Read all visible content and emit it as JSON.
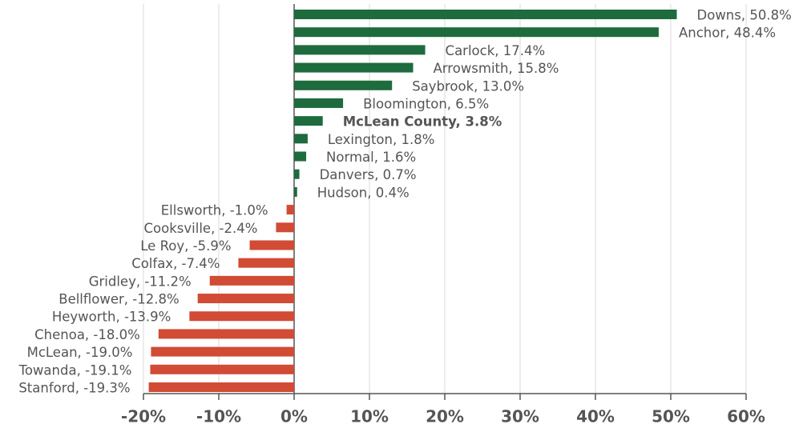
{
  "chart_data": {
    "type": "barh",
    "values": [
      50.8,
      48.4,
      17.4,
      15.8,
      13.0,
      6.5,
      3.8,
      1.8,
      1.6,
      0.7,
      0.4,
      -1.0,
      -2.4,
      -5.9,
      -7.4,
      -11.2,
      -12.8,
      -13.9,
      -18.0,
      -19.0,
      -19.1,
      -19.3
    ],
    "value_labels": [
      "Downs, 50.8%",
      "Anchor, 48.4%",
      "Carlock, 17.4%",
      "Arrowsmith, 15.8%",
      "Saybrook, 13.0%",
      "Bloomington, 6.5%",
      "McLean County, 3.8%",
      "Lexington, 1.8%",
      "Normal, 1.6%",
      "Danvers, 0.7%",
      "Hudson, 0.4%",
      "Ellsworth, -1.0%",
      "Cooksville, -2.4%",
      "Le Roy, -5.9%",
      "Colfax, -7.4%",
      "Gridley, -11.2%",
      "Bellflower, -12.8%",
      "Heyworth, -13.9%",
      "Chenoa, -18.0%",
      "McLean, -19.0%",
      "Towanda, -19.1%",
      "Stanford, -19.3%"
    ],
    "highlight_index": 6,
    "positive_color": "#1e6b3e",
    "negative_color": "#d14b35",
    "xlim": [
      -20,
      60
    ],
    "xticks": [
      {
        "value": -20,
        "label": "-20%"
      },
      {
        "value": -10,
        "label": "-10%"
      },
      {
        "value": 0,
        "label": "0%"
      },
      {
        "value": 10,
        "label": "10%"
      },
      {
        "value": 20,
        "label": "20%"
      },
      {
        "value": 30,
        "label": "30%"
      },
      {
        "value": 40,
        "label": "40%"
      },
      {
        "value": 50,
        "label": "50%"
      },
      {
        "value": 60,
        "label": "60%"
      }
    ],
    "grid": true
  }
}
